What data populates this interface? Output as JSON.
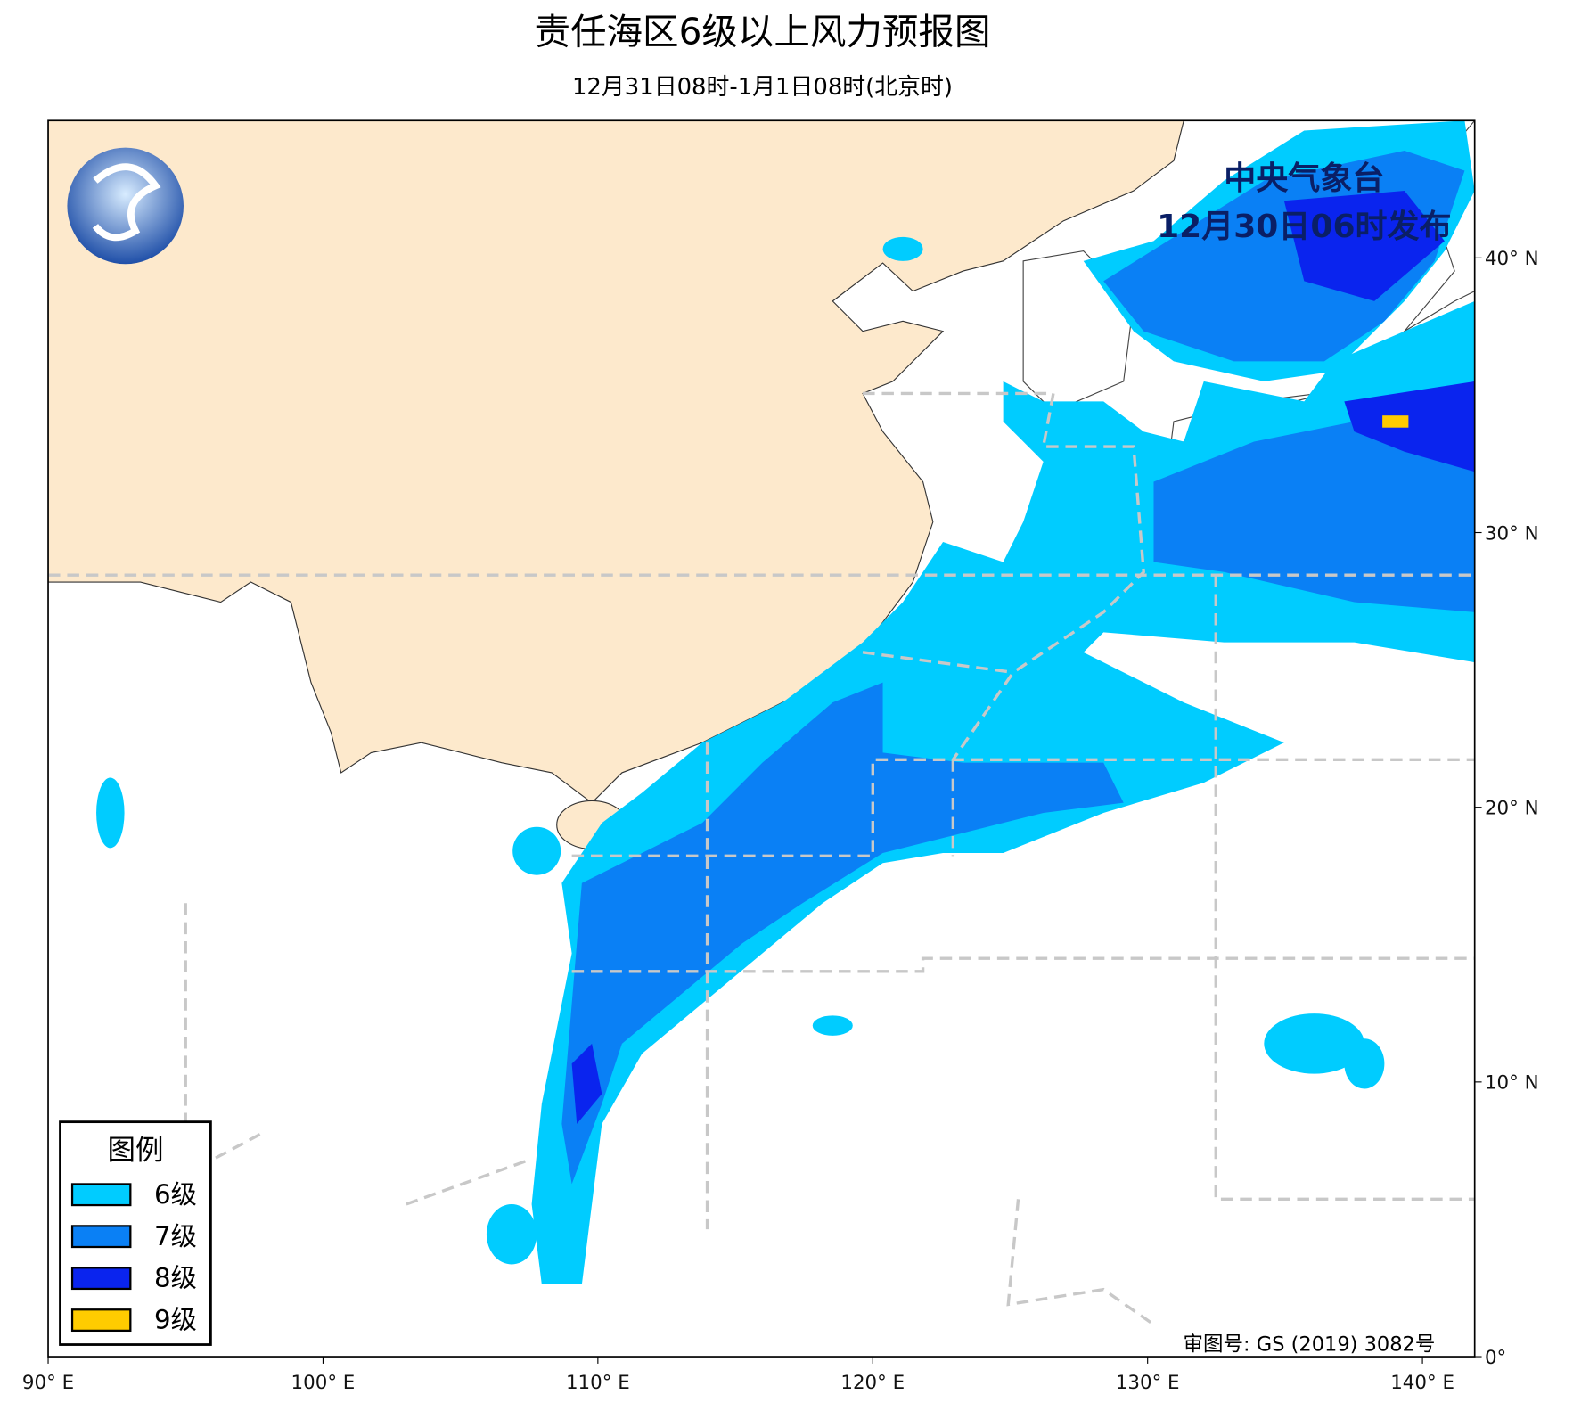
{
  "header": {
    "title": "责任海区6级以上风力预报图",
    "subtitle": "12月31日08时-1月1日08时(北京时)"
  },
  "issuer": {
    "name": "中央气象台",
    "issued": "12月30日06时发布"
  },
  "map": {
    "lon_range": [
      90,
      141.9
    ],
    "lat_range": [
      0,
      45
    ],
    "lon_ticks": [
      {
        "value": 90,
        "label": "90° E"
      },
      {
        "value": 100,
        "label": "100° E"
      },
      {
        "value": 110,
        "label": "110° E"
      },
      {
        "value": 120,
        "label": "120° E"
      },
      {
        "value": 130,
        "label": "130° E"
      },
      {
        "value": 140,
        "label": "140° E"
      }
    ],
    "lat_ticks": [
      {
        "value": 0,
        "label": "0°"
      },
      {
        "value": 10,
        "label": "10° N"
      },
      {
        "value": 20,
        "label": "20° N"
      },
      {
        "value": 30,
        "label": "30° N"
      },
      {
        "value": 40,
        "label": "40° N"
      }
    ]
  },
  "legend": {
    "title": "图例",
    "items": [
      {
        "label": "6级",
        "color": "#00ccff"
      },
      {
        "label": "7级",
        "color": "#0a80f5"
      },
      {
        "label": "8级",
        "color": "#0a24ee"
      },
      {
        "label": "9级",
        "color": "#ffcc00"
      }
    ]
  },
  "approval": "审图号: GS (2019) 3082号"
}
